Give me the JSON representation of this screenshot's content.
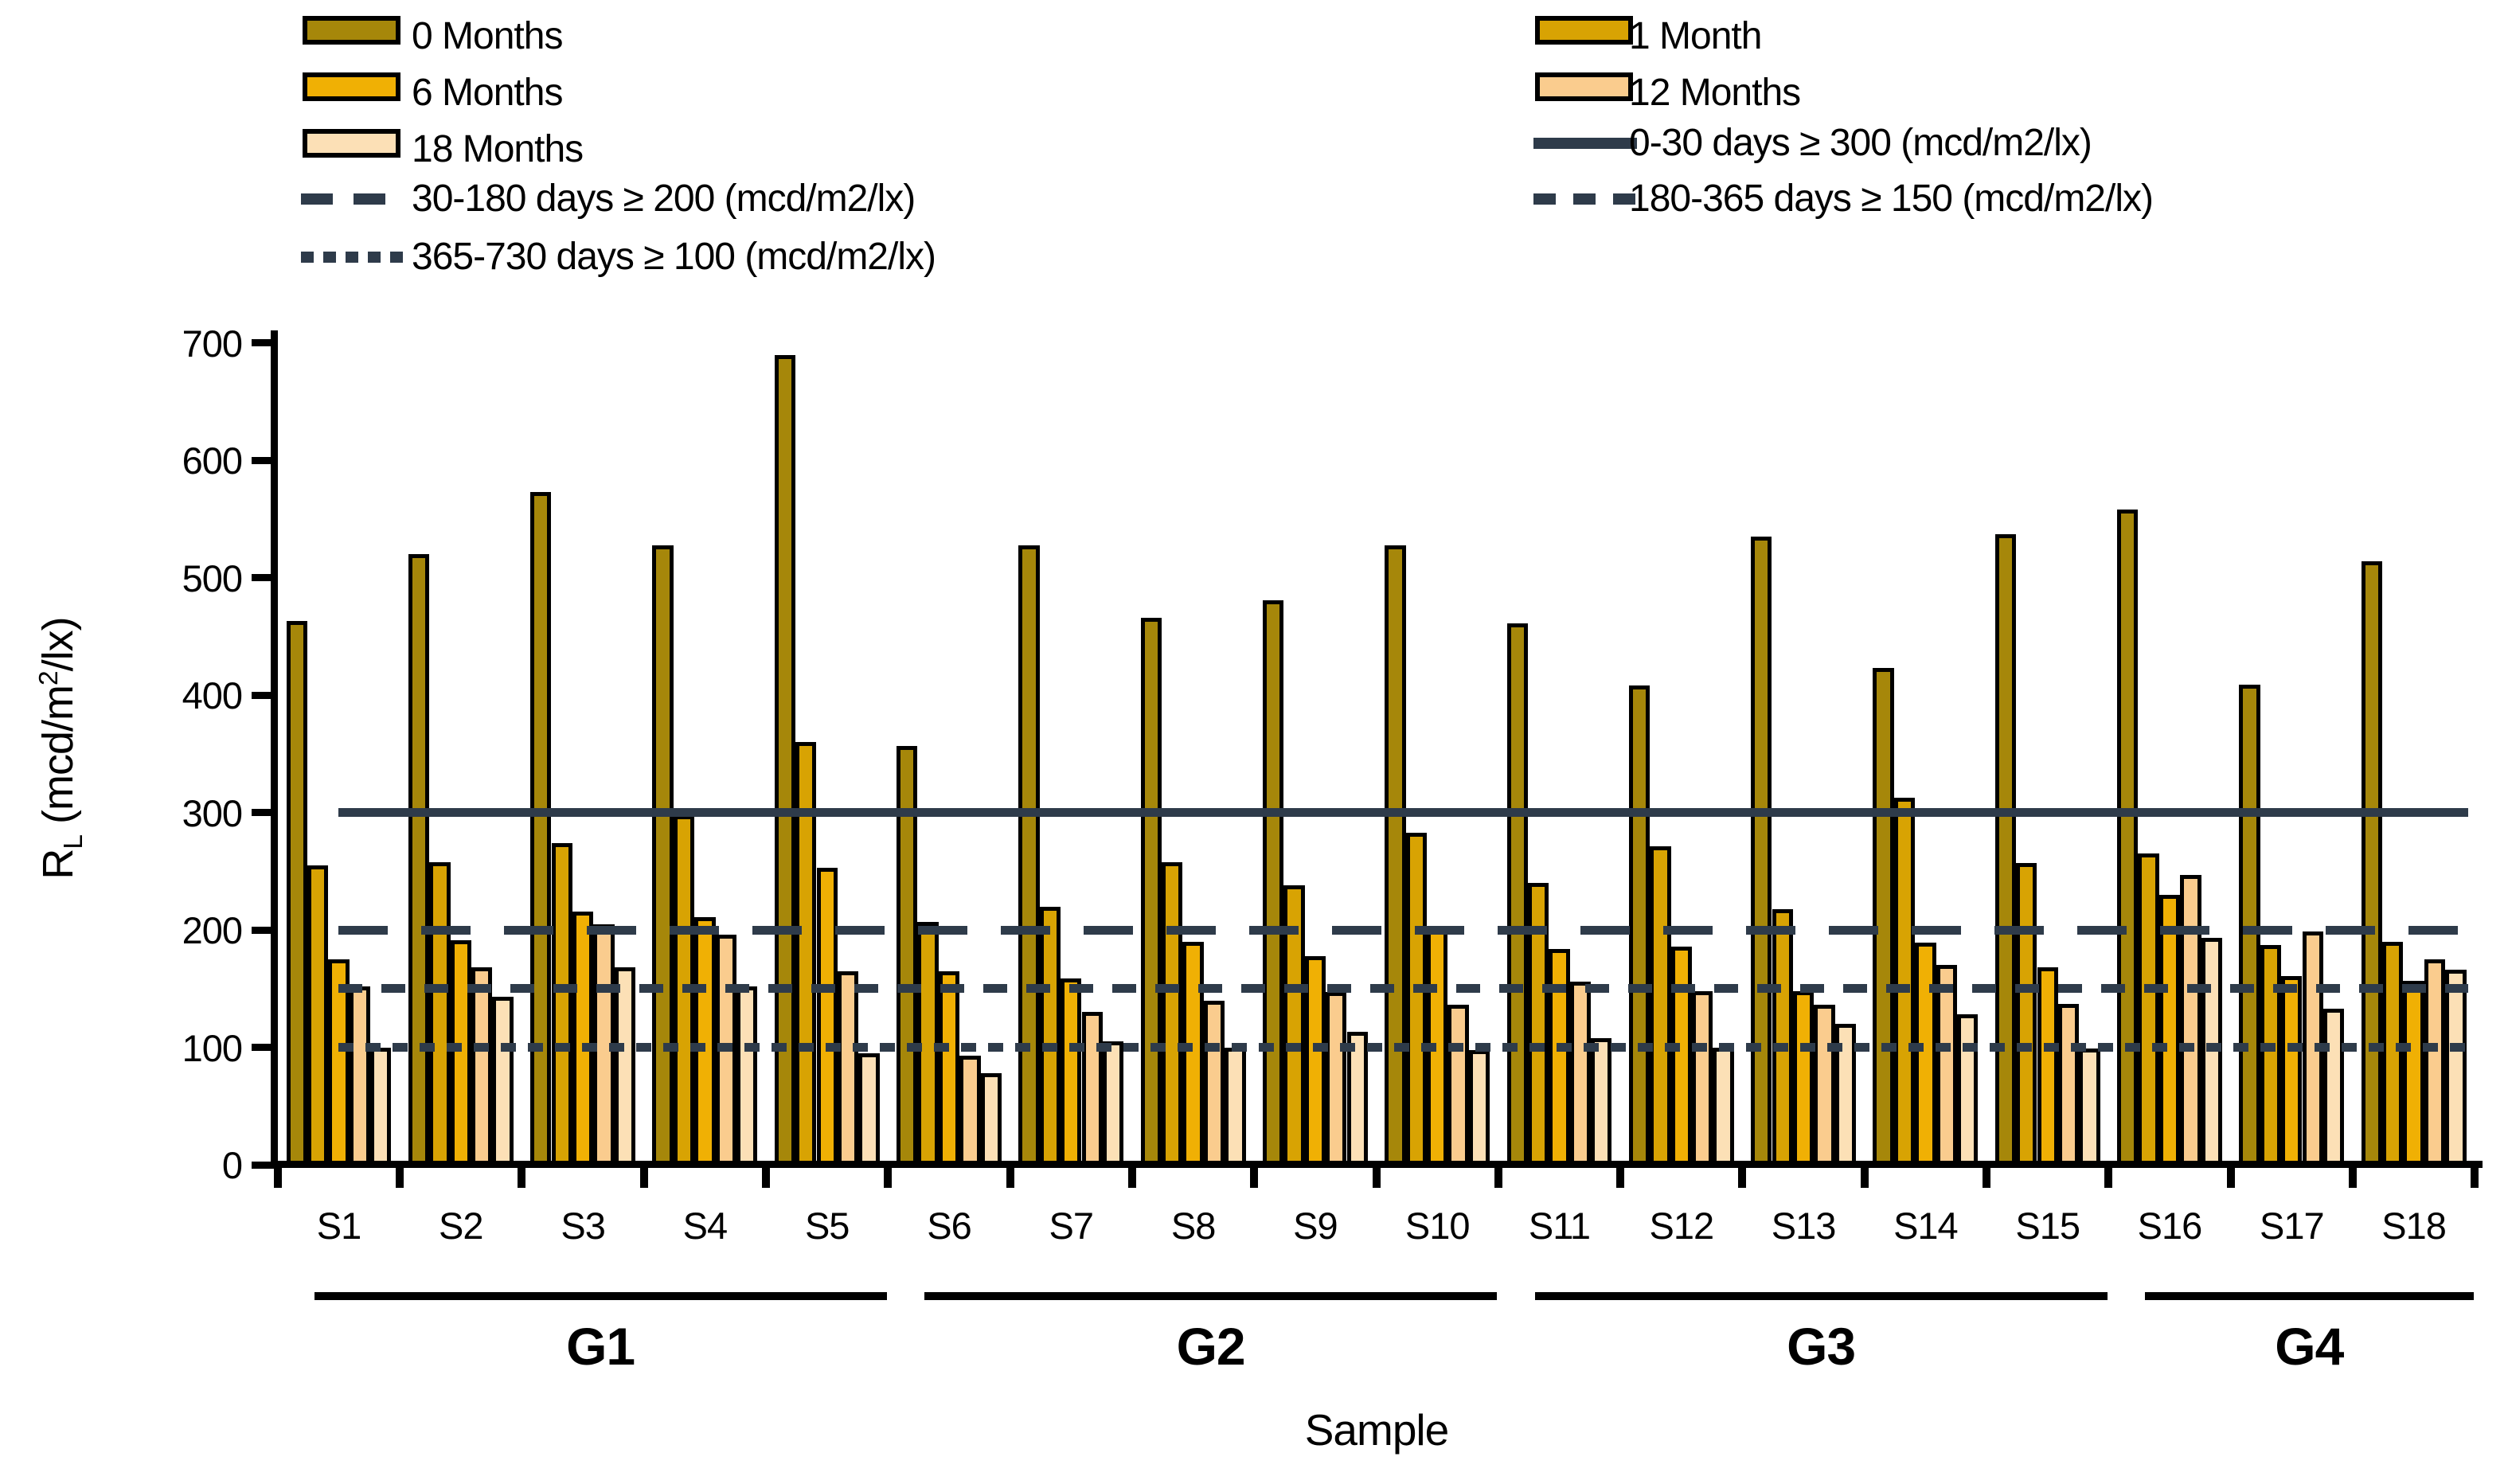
{
  "accent_colors": {
    "line_color": "#2E3B4A",
    "bar_border": "#000000"
  },
  "ylabel_parts": {
    "pre": "R",
    "sub": "L",
    "mid": " (mcd/m",
    "sup": "2",
    "post": "/lx)"
  },
  "chart_data": {
    "type": "bar",
    "title": "",
    "xlabel": "Sample",
    "ylabel": "RL (mcd/m2/lx)",
    "ylim": [
      0,
      700
    ],
    "yticks": [
      0,
      100,
      200,
      300,
      400,
      500,
      600,
      700
    ],
    "grid": false,
    "legend_position": "top",
    "categories": [
      "S1",
      "S2",
      "S3",
      "S4",
      "S5",
      "S6",
      "S7",
      "S8",
      "S9",
      "S10",
      "S11",
      "S12",
      "S13",
      "S14",
      "S15",
      "S16",
      "S17",
      "S18"
    ],
    "groups": [
      {
        "label": "G1",
        "start": 0,
        "end": 4
      },
      {
        "label": "G2",
        "start": 5,
        "end": 9
      },
      {
        "label": "G3",
        "start": 10,
        "end": 14
      },
      {
        "label": "G4",
        "start": 15,
        "end": 17
      }
    ],
    "series": [
      {
        "name": "0 Months",
        "color": "#A6870A",
        "values": [
          463,
          520,
          573,
          528,
          690,
          357,
          528,
          466,
          481,
          528,
          461,
          408,
          535,
          423,
          537,
          558,
          409,
          514
        ]
      },
      {
        "name": "1 Month",
        "color": "#D8A303",
        "values": [
          255,
          258,
          274,
          298,
          360,
          207,
          220,
          258,
          238,
          283,
          240,
          271,
          218,
          313,
          257,
          265,
          187,
          190
        ]
      },
      {
        "name": "6 Months",
        "color": "#F0B004",
        "values": [
          175,
          191,
          216,
          211,
          253,
          165,
          159,
          190,
          178,
          202,
          184,
          186,
          148,
          189,
          168,
          230,
          161,
          157
        ]
      },
      {
        "name": "12 Months",
        "color": "#FACC8E",
        "values": [
          152,
          168,
          205,
          196,
          165,
          93,
          130,
          140,
          147,
          136,
          156,
          148,
          136,
          170,
          137,
          247,
          199,
          175
        ]
      },
      {
        "name": "18 Months",
        "color": "#FCE0B6",
        "values": [
          100,
          143,
          168,
          152,
          95,
          78,
          105,
          100,
          113,
          98,
          108,
          100,
          120,
          128,
          99,
          193,
          133,
          166
        ]
      }
    ],
    "reference_lines": [
      {
        "label": "0-30 days ≥ 300 (mcd/m2/lx)",
        "value": 300,
        "style": "solid"
      },
      {
        "label": "30-180 days ≥ 200 (mcd/m2/lx)",
        "value": 200,
        "style": "long"
      },
      {
        "label": "180-365 days ≥ 150 (mcd/m2/lx)",
        "value": 150,
        "style": "medium"
      },
      {
        "label": "365-730 days ≥ 100 (mcd/m2/lx)",
        "value": 100,
        "style": "fine"
      }
    ]
  },
  "legend": {
    "left": [
      {
        "kind": "swatch",
        "series": 0
      },
      {
        "kind": "swatch",
        "series": 2
      },
      {
        "kind": "swatch",
        "series": 4
      },
      {
        "kind": "line",
        "ref": 1
      },
      {
        "kind": "line",
        "ref": 3
      }
    ],
    "right": [
      {
        "kind": "swatch",
        "series": 1
      },
      {
        "kind": "swatch",
        "series": 3
      },
      {
        "kind": "line",
        "ref": 0
      },
      {
        "kind": "line",
        "ref": 2
      }
    ]
  }
}
